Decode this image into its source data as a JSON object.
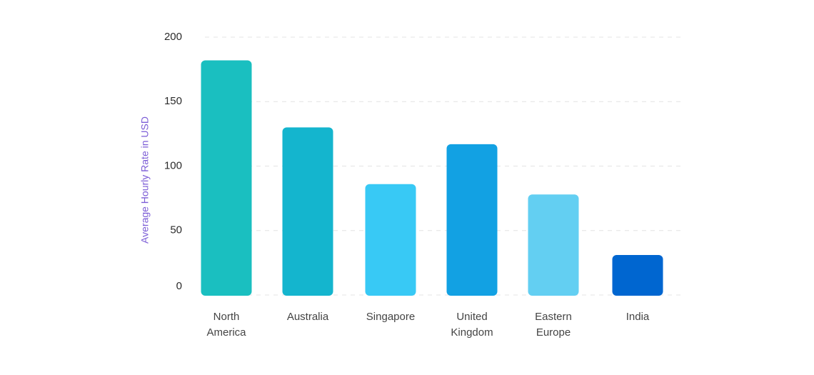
{
  "chart_data": {
    "type": "bar",
    "ylabel": "Average Hourly Rate in USD",
    "xlabel": "",
    "ylim": [
      0,
      200
    ],
    "yticks": [
      "0",
      "50",
      "100",
      "150",
      "200"
    ],
    "grid": true,
    "categories": [
      [
        "North",
        "America"
      ],
      [
        "Australia"
      ],
      [
        "Singapore"
      ],
      [
        "United",
        "Kingdom"
      ],
      [
        "Eastern",
        "Europe"
      ],
      [
        "India"
      ]
    ],
    "values": [
      182,
      130,
      86,
      117,
      78,
      31
    ],
    "colors": [
      "#1abfc0",
      "#14b5ce",
      "#38c9f5",
      "#12a1e3",
      "#63cff2",
      "#0066d0"
    ],
    "ylabel_color": "#7b5cd6"
  }
}
